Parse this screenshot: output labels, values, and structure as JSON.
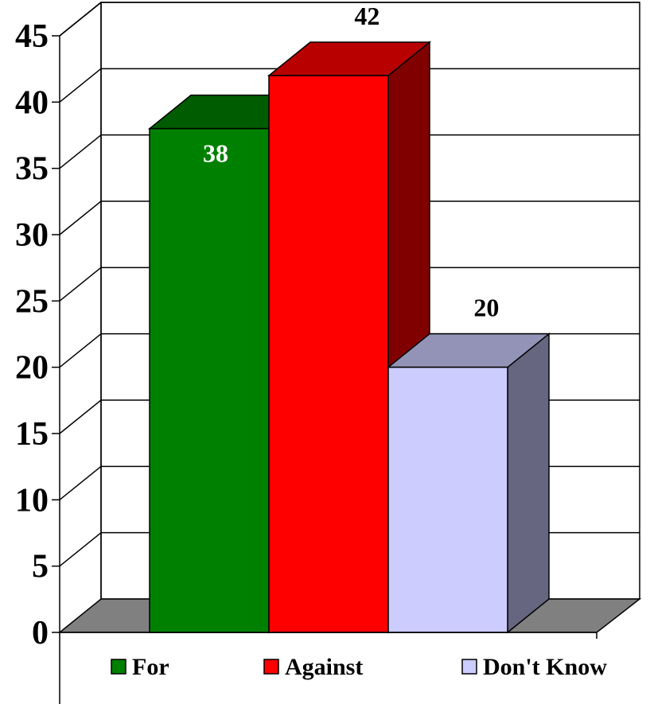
{
  "chart_data": {
    "type": "bar",
    "style": "3d",
    "categories": [
      "For",
      "Against",
      "Don't Know"
    ],
    "values": [
      38,
      42,
      20
    ],
    "data_labels": [
      "38",
      "42",
      "20"
    ],
    "colors": [
      "#008000",
      "#ff0000",
      "#ccccff"
    ],
    "label_colors": [
      "#ffffff",
      "#000000",
      "#000000"
    ],
    "ylim": [
      0,
      45
    ],
    "yticks": [
      "0",
      "5",
      "10",
      "15",
      "20",
      "25",
      "30",
      "35",
      "40",
      "45"
    ],
    "grid": true,
    "legend": {
      "position": "bottom",
      "entries": [
        "For",
        "Against",
        "Don't Know"
      ]
    }
  }
}
